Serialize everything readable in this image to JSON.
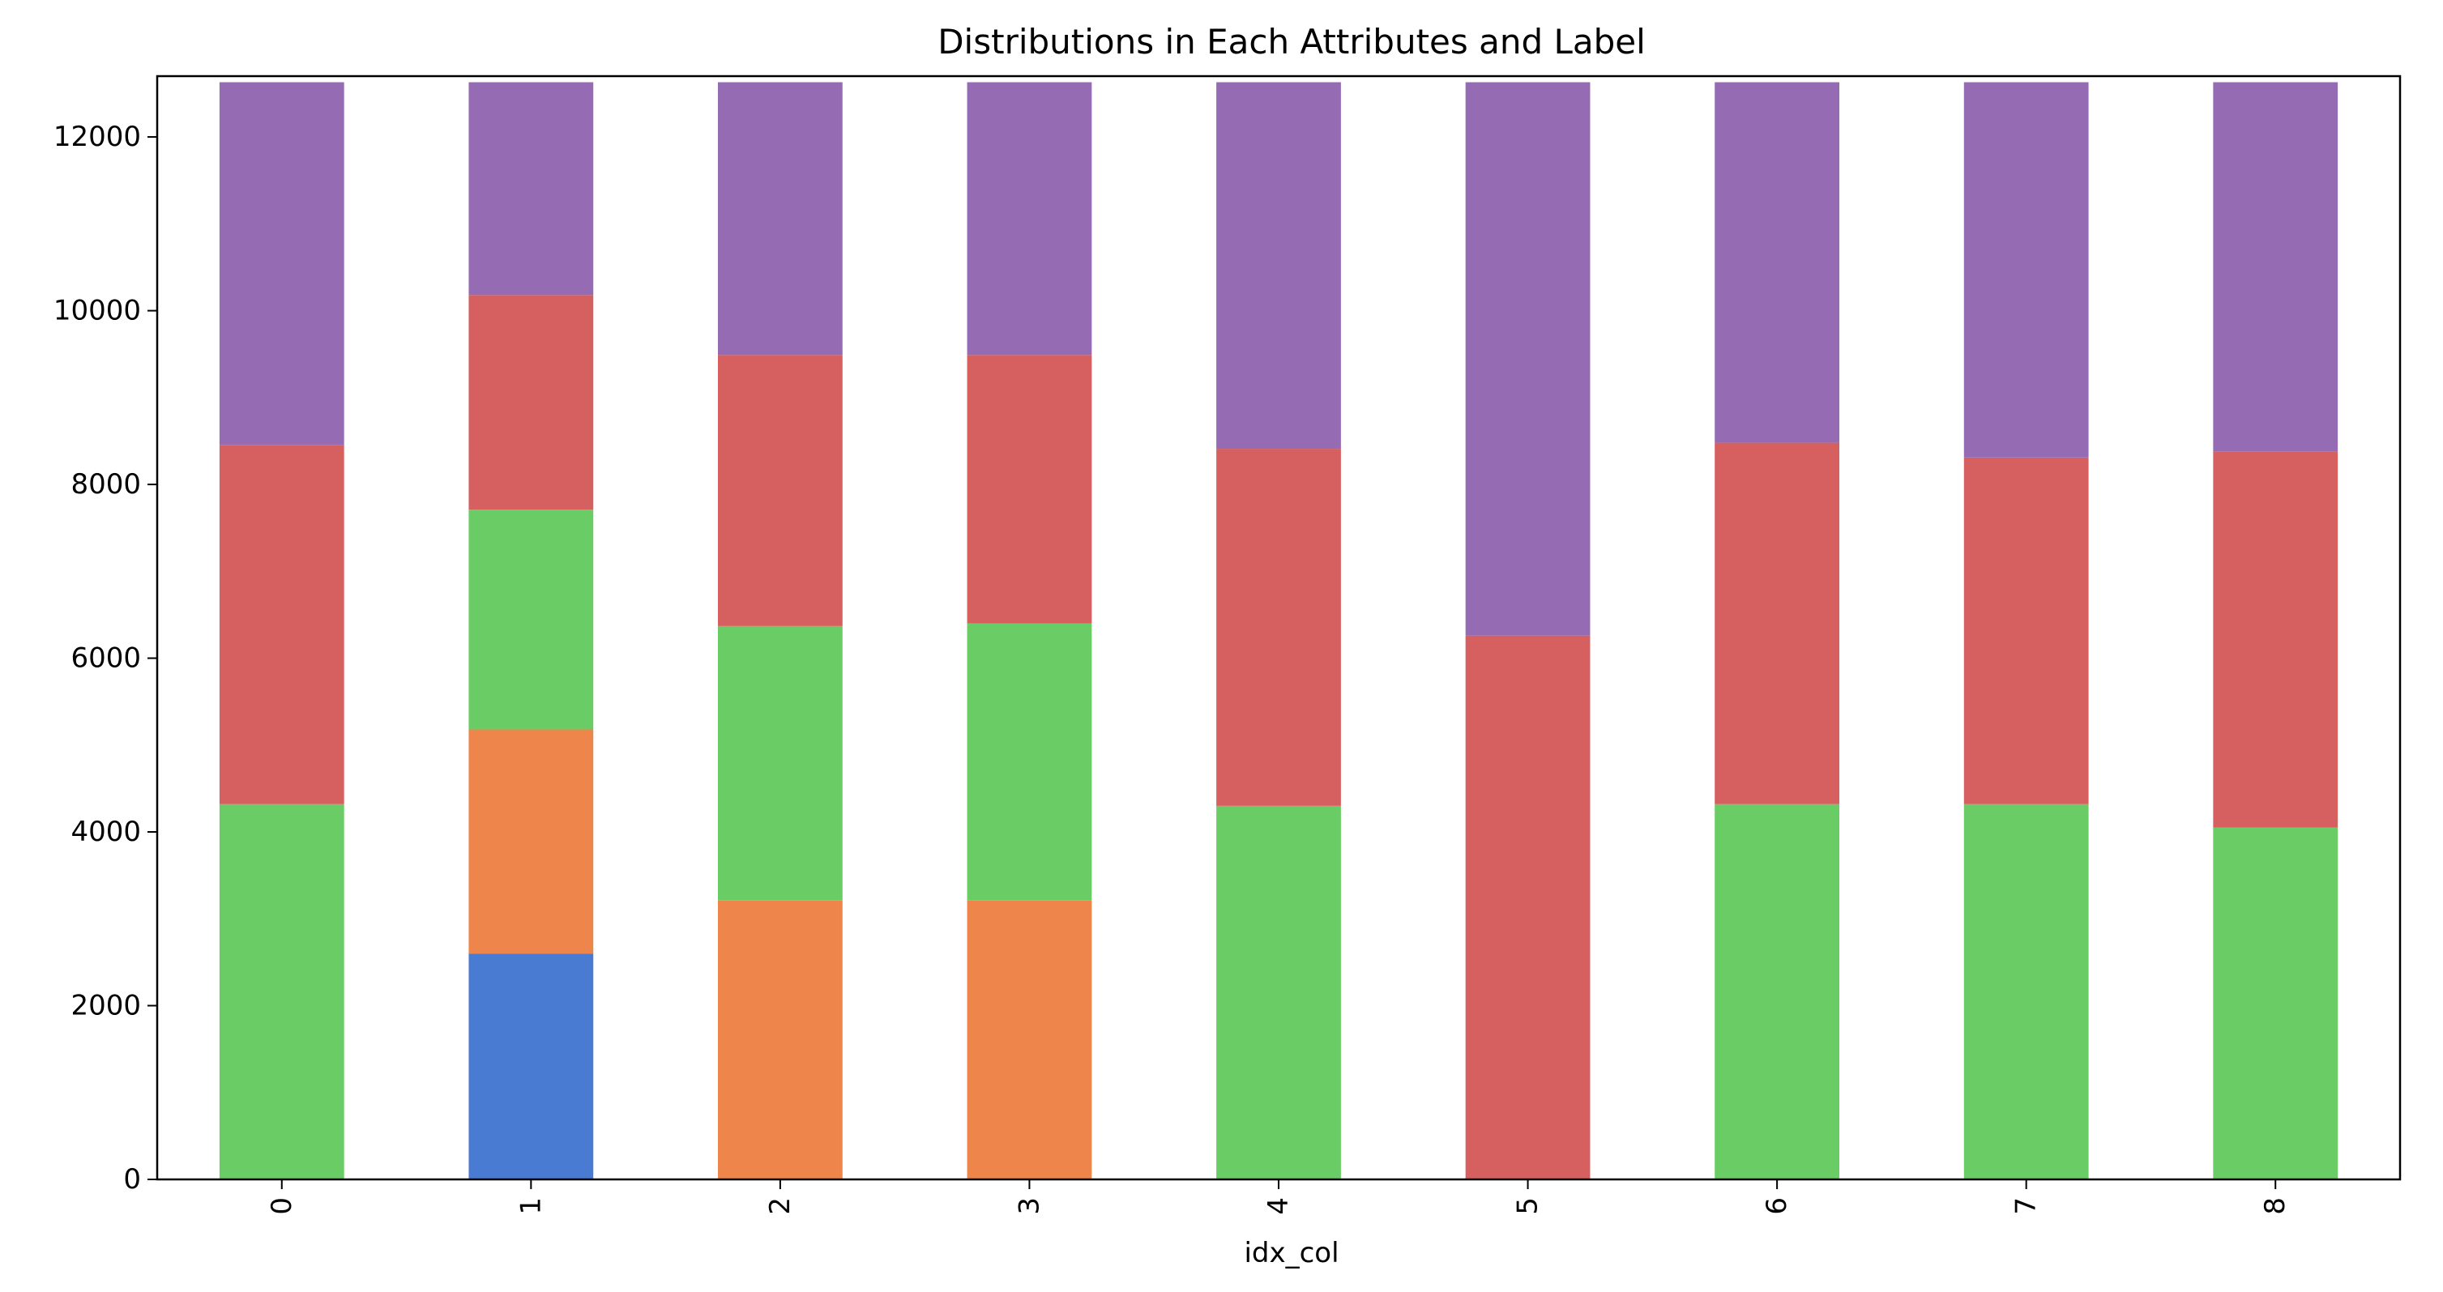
{
  "chart_data": {
    "type": "bar",
    "stacked": true,
    "title": "Distributions in Each Attributes and Label",
    "xlabel": "idx_col",
    "ylabel": "",
    "categories": [
      "0",
      "1",
      "2",
      "3",
      "4",
      "5",
      "6",
      "7",
      "8"
    ],
    "ylim": [
      0,
      12700
    ],
    "yticks": [
      0,
      2000,
      4000,
      6000,
      8000,
      10000,
      12000
    ],
    "xtick_rotation": 90,
    "legend": "none",
    "grid": false,
    "series": [
      {
        "color": "#4a7bd3",
        "values": [
          0,
          2600,
          0,
          0,
          0,
          0,
          0,
          0,
          0
        ]
      },
      {
        "color": "#ee854a",
        "values": [
          0,
          2580,
          3210,
          3210,
          0,
          0,
          0,
          0,
          0
        ]
      },
      {
        "color": "#6acc64",
        "values": [
          4320,
          2530,
          3160,
          3190,
          4300,
          0,
          4320,
          4320,
          4050
        ]
      },
      {
        "color": "#d65f5f",
        "values": [
          4130,
          2470,
          3120,
          3090,
          4110,
          6260,
          4160,
          3990,
          4330
        ]
      },
      {
        "color": "#956cb4",
        "values": [
          4180,
          2450,
          3140,
          3140,
          4220,
          6370,
          4150,
          4320,
          4250
        ]
      }
    ]
  }
}
